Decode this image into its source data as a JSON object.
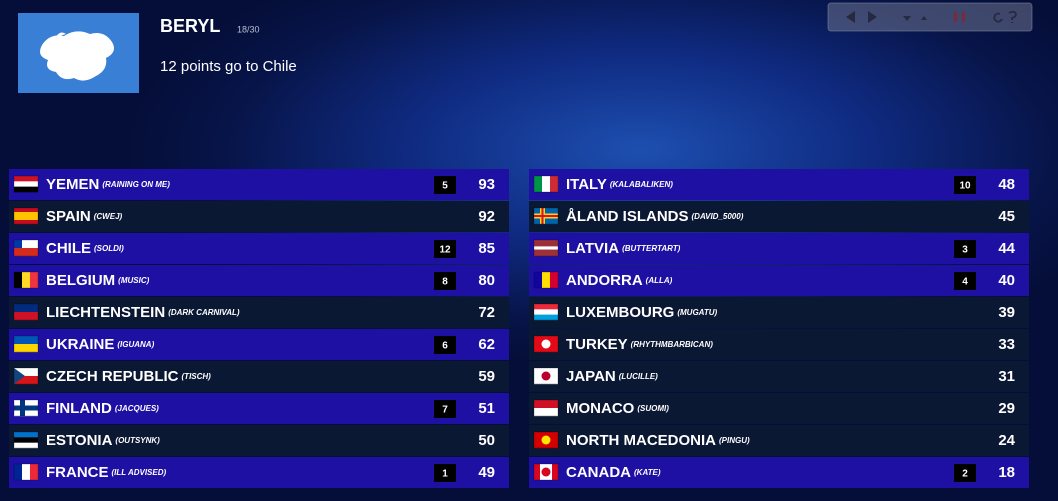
{
  "header": {
    "voter": "BERYL",
    "progress": "18/30",
    "message": "12 points go to Chile"
  },
  "rows": [
    {
      "country": "YEMEN",
      "user": "(RAINING ON ME)",
      "points": 5,
      "score": 93
    },
    {
      "country": "SPAIN",
      "user": "(CWEJ)",
      "points": null,
      "score": 92
    },
    {
      "country": "CHILE",
      "user": "(SOLDI)",
      "points": 12,
      "score": 85
    },
    {
      "country": "BELGIUM",
      "user": "(MUSIC)",
      "points": 8,
      "score": 80
    },
    {
      "country": "LIECHTENSTEIN",
      "user": "(DARK CARNIVAL)",
      "points": null,
      "score": 72
    },
    {
      "country": "UKRAINE",
      "user": "(IGUANA)",
      "points": 6,
      "score": 62
    },
    {
      "country": "CZECH REPUBLIC",
      "user": "(TISCH)",
      "points": null,
      "score": 59
    },
    {
      "country": "FINLAND",
      "user": "(JACQUES)",
      "points": 7,
      "score": 51
    },
    {
      "country": "ESTONIA",
      "user": "(OUTSYNK)",
      "points": null,
      "score": 50
    },
    {
      "country": "FRANCE",
      "user": "(ILL ADVISED)",
      "points": 1,
      "score": 49
    },
    {
      "country": "ITALY",
      "user": "(KALABALIKEN)",
      "points": 10,
      "score": 48
    },
    {
      "country": "ÅLAND ISLANDS",
      "user": "(DAVID_5000)",
      "points": null,
      "score": 45
    },
    {
      "country": "LATVIA",
      "user": "(BUTTERTART)",
      "points": 3,
      "score": 44
    },
    {
      "country": "ANDORRA",
      "user": "(ALLA)",
      "points": 4,
      "score": 40
    },
    {
      "country": "LUXEMBOURG",
      "user": "(MUGATU)",
      "points": null,
      "score": 39
    },
    {
      "country": "TURKEY",
      "user": "(RHYTHMBARBICAN)",
      "points": null,
      "score": 33
    },
    {
      "country": "JAPAN",
      "user": "(LUCILLE)",
      "points": null,
      "score": 31
    },
    {
      "country": "MONACO",
      "user": "(SUOMI)",
      "points": null,
      "score": 29
    },
    {
      "country": "NORTH MACEDONIA",
      "user": "(PINGU)",
      "points": null,
      "score": 24
    },
    {
      "country": "CANADA",
      "user": "(KATE)",
      "points": 2,
      "score": 18
    }
  ]
}
